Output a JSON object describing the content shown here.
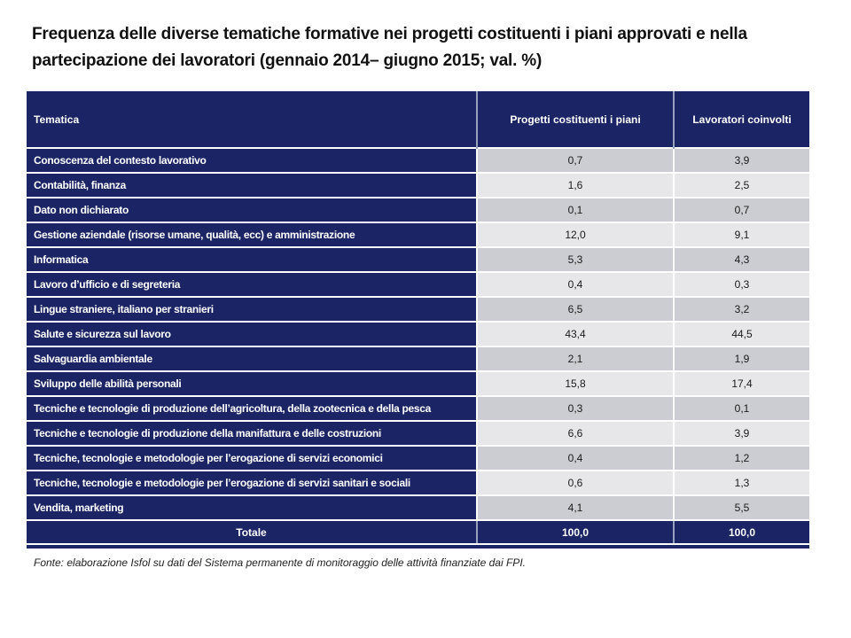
{
  "title": "Frequenza delle diverse tematiche formative nei progetti costituenti i piani approvati e nella partecipazione dei lavoratori (gennaio 2014– giugno 2015; val. %)",
  "table": {
    "columns": [
      "Tematica",
      "Progetti costituenti i piani",
      "Lavoratori coinvolti"
    ],
    "rows": [
      {
        "tematica": "Conoscenza del contesto lavorativo",
        "progetti": "0,7",
        "lavoratori": "3,9"
      },
      {
        "tematica": "Contabilità, finanza",
        "progetti": "1,6",
        "lavoratori": "2,5"
      },
      {
        "tematica": "Dato non dichiarato",
        "progetti": "0,1",
        "lavoratori": "0,7"
      },
      {
        "tematica": "Gestione aziendale (risorse umane, qualità, ecc) e amministrazione",
        "progetti": "12,0",
        "lavoratori": "9,1"
      },
      {
        "tematica": "Informatica",
        "progetti": "5,3",
        "lavoratori": "4,3"
      },
      {
        "tematica": "Lavoro d’ufficio e di segreteria",
        "progetti": "0,4",
        "lavoratori": "0,3"
      },
      {
        "tematica": "Lingue straniere, italiano per stranieri",
        "progetti": "6,5",
        "lavoratori": "3,2"
      },
      {
        "tematica": "Salute e sicurezza sul lavoro",
        "progetti": "43,4",
        "lavoratori": "44,5"
      },
      {
        "tematica": "Salvaguardia ambientale",
        "progetti": "2,1",
        "lavoratori": "1,9"
      },
      {
        "tematica": "Sviluppo delle abilità personali",
        "progetti": "15,8",
        "lavoratori": "17,4"
      },
      {
        "tematica": "Tecniche e tecnologie di produzione dell’agricoltura, della zootecnica e della pesca",
        "progetti": "0,3",
        "lavoratori": "0,1"
      },
      {
        "tematica": "Tecniche e tecnologie di produzione della manifattura e delle costruzioni",
        "progetti": "6,6",
        "lavoratori": "3,9"
      },
      {
        "tematica": "Tecniche, tecnologie e metodologie per l’erogazione di servizi economici",
        "progetti": "0,4",
        "lavoratori": "1,2"
      },
      {
        "tematica": "Tecniche, tecnologie e metodologie per l’erogazione di servizi sanitari e sociali",
        "progetti": "0,6",
        "lavoratori": "1,3"
      },
      {
        "tematica": "Vendita, marketing",
        "progetti": "4,1",
        "lavoratori": "5,5"
      }
    ],
    "total": {
      "label": "Totale",
      "progetti": "100,0",
      "lavoratori": "100,0"
    }
  },
  "footnote": "Fonte: elaborazione Isfol su dati del Sistema permanente di monitoraggio delle attività finanziate dai FPI.",
  "colors": {
    "navy": "#1B2566",
    "row_gray_dark": "#CBCDD2",
    "row_gray_light": "#E7E7EA",
    "header_divider": "#97A0BF"
  }
}
